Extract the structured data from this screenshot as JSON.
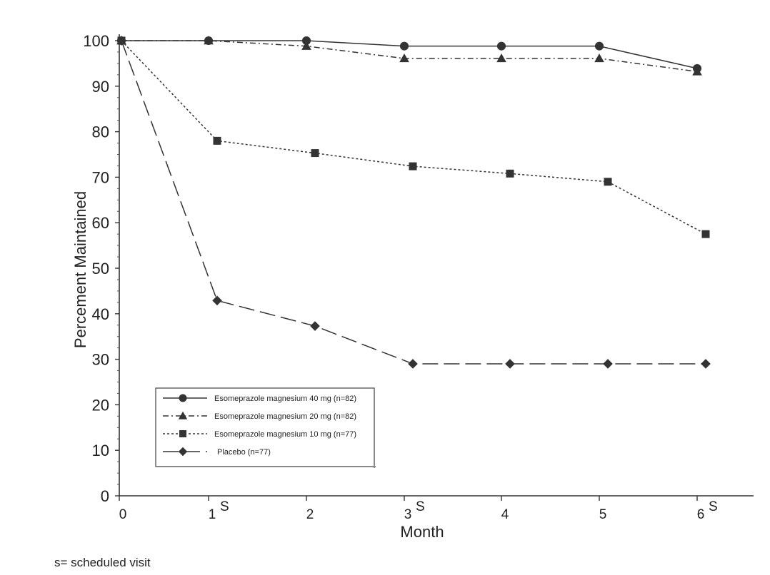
{
  "chart_data": {
    "type": "line",
    "xlabel": "Month",
    "ylabel": "Percement Maintained",
    "xlim": [
      0,
      6
    ],
    "ylim": [
      0,
      100
    ],
    "x_ticks": [
      "0",
      "1",
      "2",
      "3",
      "4",
      "5",
      "6"
    ],
    "y_ticks": [
      "0",
      "10",
      "20",
      "30",
      "40",
      "50",
      "60",
      "70",
      "80",
      "90",
      "100"
    ],
    "scheduled_marker": "S",
    "scheduled_months": [
      1,
      3,
      6
    ],
    "legend_position": "bottom-left",
    "grid": false,
    "series": [
      {
        "name": "Esomeprazole magnesium 40 mg (n=82)",
        "marker": "circle",
        "dash": "solid",
        "x": [
          0,
          1,
          2,
          3,
          4,
          5,
          6
        ],
        "y": [
          100,
          100,
          100,
          98.8,
          98.8,
          98.8,
          93.9
        ]
      },
      {
        "name": "Esomeprazole magnesium 20 mg (n=82)",
        "marker": "triangle",
        "dash": "dashdot",
        "x": [
          0,
          1,
          2,
          3,
          4,
          5,
          6
        ],
        "y": [
          100,
          100,
          98.8,
          96.1,
          96.1,
          96.1,
          93.2
        ]
      },
      {
        "name": "Esomeprazole magnesium 10 mg (n=77)",
        "marker": "square",
        "dash": "dotted",
        "x": [
          0,
          1,
          2,
          3,
          4,
          5,
          6
        ],
        "y": [
          100,
          78.0,
          75.3,
          72.4,
          70.8,
          69.0,
          57.5
        ]
      },
      {
        "name": "Placebo (n=77)",
        "marker": "diamond",
        "dash": "longdash",
        "x": [
          0,
          1,
          2,
          3,
          4,
          5,
          6
        ],
        "y": [
          100,
          42.9,
          37.3,
          29.0,
          29.0,
          29.0,
          29.0
        ]
      }
    ]
  },
  "footnote": "s= scheduled visit"
}
